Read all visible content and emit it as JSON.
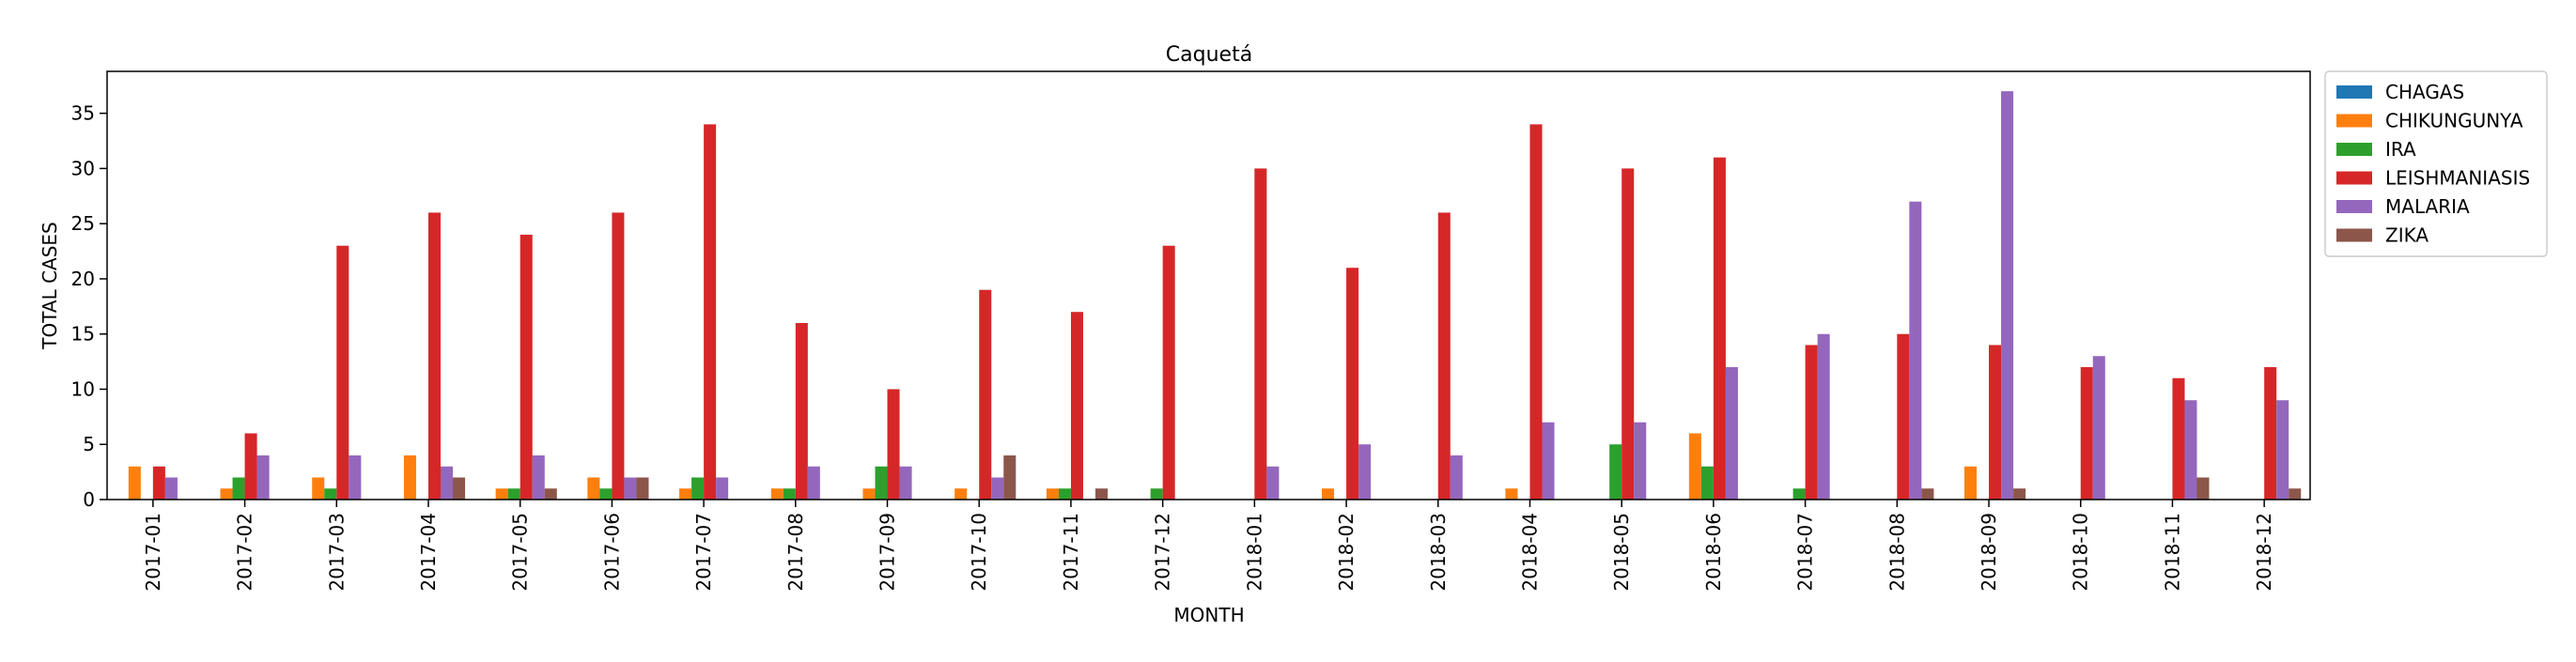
{
  "chart_data": {
    "type": "bar",
    "title": "Caquetá",
    "xlabel": "MONTH",
    "ylabel": "TOTAL CASES",
    "ylim": [
      0,
      38.8
    ],
    "yticks": [
      0,
      5,
      10,
      15,
      20,
      25,
      30,
      35
    ],
    "legend_position": "outside-right",
    "grid": false,
    "categories": [
      "2017-01",
      "2017-02",
      "2017-03",
      "2017-04",
      "2017-05",
      "2017-06",
      "2017-07",
      "2017-08",
      "2017-09",
      "2017-10",
      "2017-11",
      "2017-12",
      "2018-01",
      "2018-02",
      "2018-03",
      "2018-04",
      "2018-05",
      "2018-06",
      "2018-07",
      "2018-08",
      "2018-09",
      "2018-10",
      "2018-11",
      "2018-12"
    ],
    "series": [
      {
        "name": "CHAGAS",
        "color": "#1f77b4",
        "values": [
          0,
          0,
          0,
          0,
          0,
          0,
          0,
          0,
          0,
          0,
          0,
          0,
          0,
          0,
          0,
          0,
          0,
          0,
          0,
          0,
          0,
          0,
          0,
          0
        ]
      },
      {
        "name": "CHIKUNGUNYA",
        "color": "#ff7f0e",
        "values": [
          3,
          1,
          2,
          4,
          1,
          2,
          1,
          1,
          1,
          1,
          1,
          0,
          0,
          1,
          0,
          1,
          0,
          6,
          0,
          0,
          3,
          0,
          0,
          0
        ]
      },
      {
        "name": "IRA",
        "color": "#2ca02c",
        "values": [
          0,
          2,
          1,
          0,
          1,
          1,
          2,
          1,
          3,
          0,
          1,
          1,
          0,
          0,
          0,
          0,
          5,
          3,
          1,
          0,
          0,
          0,
          0,
          0
        ]
      },
      {
        "name": "LEISHMANIASIS",
        "color": "#d62728",
        "values": [
          3,
          6,
          23,
          26,
          24,
          26,
          34,
          16,
          10,
          19,
          17,
          23,
          30,
          21,
          26,
          34,
          30,
          31,
          14,
          15,
          14,
          12,
          11,
          12
        ]
      },
      {
        "name": "MALARIA",
        "color": "#9467bd",
        "values": [
          2,
          4,
          4,
          3,
          4,
          2,
          2,
          3,
          3,
          2,
          0,
          0,
          3,
          5,
          4,
          7,
          7,
          12,
          15,
          27,
          37,
          13,
          9,
          9
        ]
      },
      {
        "name": "ZIKA",
        "color": "#8c564b",
        "values": [
          0,
          0,
          0,
          2,
          1,
          2,
          0,
          0,
          0,
          4,
          1,
          0,
          0,
          0,
          0,
          0,
          0,
          0,
          0,
          1,
          1,
          0,
          2,
          1
        ]
      }
    ]
  }
}
